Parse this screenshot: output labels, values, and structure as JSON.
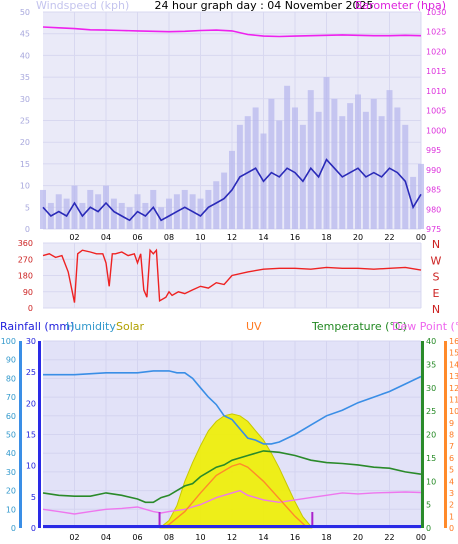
{
  "chart_data": [
    {
      "type": "line",
      "title": "24 hour graph day : 04 November 2025",
      "left_label": "Windspeed (kph)",
      "right_label": "Barometer (hpa)",
      "x_ticks": [
        "02",
        "04",
        "06",
        "08",
        "10",
        "12",
        "14",
        "16",
        "18",
        "20",
        "22",
        "00"
      ],
      "y_left_ticks": [
        "0",
        "5",
        "10",
        "15",
        "20",
        "25",
        "30",
        "35",
        "40",
        "45",
        "50"
      ],
      "y_right_ticks": [
        "975",
        "980",
        "985",
        "990",
        "995",
        "1000",
        "1005",
        "1010",
        "1015",
        "1020",
        "1025",
        "1030"
      ],
      "ylim_left": [
        0,
        50
      ],
      "ylim_right": [
        975,
        1030
      ],
      "colors": {
        "wind_avg": "#2a2ab8",
        "wind_gust": "#b8b8ee",
        "barometer": "#ee22ee"
      },
      "series": [
        {
          "key": "barometer",
          "axis": "right",
          "x": [
            0,
            1,
            2,
            3,
            4,
            5,
            6,
            7,
            8,
            9,
            10,
            11,
            12,
            13,
            14,
            15,
            16,
            17,
            18,
            19,
            20,
            21,
            22,
            23,
            24
          ],
          "values": [
            1026.2,
            1026.0,
            1025.8,
            1025.5,
            1025.4,
            1025.3,
            1025.2,
            1025.1,
            1025.0,
            1025.1,
            1025.3,
            1025.4,
            1025.2,
            1024.3,
            1023.9,
            1023.8,
            1023.9,
            1024.0,
            1024.1,
            1024.2,
            1024.1,
            1024.0,
            1024.0,
            1024.1,
            1024.0
          ]
        },
        {
          "key": "wind_avg",
          "axis": "left",
          "x": [
            0,
            0.5,
            1,
            1.5,
            2,
            2.5,
            3,
            3.5,
            4,
            4.5,
            5,
            5.5,
            6,
            6.5,
            7,
            7.5,
            8,
            8.5,
            9,
            9.5,
            10,
            10.5,
            11,
            11.5,
            12,
            12.5,
            13,
            13.5,
            14,
            14.5,
            15,
            15.5,
            16,
            16.5,
            17,
            17.5,
            18,
            18.5,
            19,
            19.5,
            20,
            20.5,
            21,
            21.5,
            22,
            22.5,
            23,
            23.5,
            24
          ],
          "values": [
            5,
            3,
            4,
            3,
            6,
            3,
            5,
            4,
            6,
            4,
            3,
            2,
            4,
            3,
            5,
            2,
            3,
            4,
            5,
            4,
            3,
            5,
            6,
            7,
            9,
            12,
            13,
            14,
            11,
            13,
            12,
            14,
            13,
            11,
            14,
            12,
            16,
            14,
            12,
            13,
            14,
            12,
            13,
            12,
            14,
            13,
            11,
            5,
            8
          ]
        },
        {
          "key": "wind_gust",
          "axis": "left",
          "x": [
            0,
            0.5,
            1,
            1.5,
            2,
            2.5,
            3,
            3.5,
            4,
            4.5,
            5,
            5.5,
            6,
            6.5,
            7,
            7.5,
            8,
            8.5,
            9,
            9.5,
            10,
            10.5,
            11,
            11.5,
            12,
            12.5,
            13,
            13.5,
            14,
            14.5,
            15,
            15.5,
            16,
            16.5,
            17,
            17.5,
            18,
            18.5,
            19,
            19.5,
            20,
            20.5,
            21,
            21.5,
            22,
            22.5,
            23,
            23.5,
            24
          ],
          "values": [
            9,
            6,
            8,
            7,
            10,
            6,
            9,
            8,
            10,
            7,
            6,
            5,
            8,
            6,
            9,
            5,
            7,
            8,
            9,
            8,
            7,
            9,
            11,
            13,
            18,
            24,
            26,
            28,
            22,
            30,
            25,
            33,
            28,
            24,
            32,
            27,
            35,
            30,
            26,
            29,
            31,
            27,
            30,
            26,
            32,
            28,
            24,
            12,
            15
          ]
        }
      ]
    },
    {
      "type": "line",
      "y_ticks": [
        "360",
        "270",
        "180",
        "90",
        "0"
      ],
      "ylim": [
        0,
        360
      ],
      "right_ticks": [
        "N",
        "W",
        "S",
        "E",
        "N"
      ],
      "colors": {
        "direction": "#ee2222"
      },
      "series": [
        {
          "key": "wind_direction",
          "x": [
            0,
            0.4,
            0.8,
            1.2,
            1.6,
            2.0,
            2.2,
            2.5,
            3.0,
            3.4,
            3.8,
            4.0,
            4.2,
            4.4,
            4.6,
            5.0,
            5.4,
            5.8,
            6.0,
            6.2,
            6.4,
            6.6,
            6.8,
            7.0,
            7.2,
            7.4,
            7.8,
            8.0,
            8.2,
            8.6,
            9.0,
            9.5,
            10,
            10.5,
            11,
            11.5,
            12,
            13,
            14,
            15,
            16,
            17,
            18,
            19,
            20,
            21,
            22,
            23,
            24
          ],
          "values": [
            290,
            300,
            280,
            290,
            200,
            30,
            300,
            320,
            310,
            300,
            300,
            250,
            120,
            300,
            300,
            310,
            290,
            300,
            250,
            300,
            100,
            60,
            320,
            300,
            320,
            40,
            60,
            90,
            70,
            90,
            80,
            100,
            120,
            110,
            140,
            130,
            180,
            200,
            215,
            220,
            220,
            215,
            225,
            220,
            220,
            215,
            220,
            225,
            210
          ]
        }
      ]
    },
    {
      "type": "line",
      "labels": {
        "rainfall": "Rainfall (mm)",
        "humidity": "Humidity",
        "solar": "Solar",
        "uv": "UV",
        "temperature": "Temperature (°C)",
        "dewpoint": "Dew Point (°C)"
      },
      "x_ticks": [
        "02",
        "04",
        "06",
        "08",
        "10",
        "12",
        "14",
        "16",
        "18",
        "20",
        "22",
        "00"
      ],
      "y_humidity_ticks": [
        "0",
        "10",
        "20",
        "30",
        "40",
        "50",
        "60",
        "70",
        "80",
        "90",
        "100"
      ],
      "y_rain_ticks": [
        "0",
        "5",
        "10",
        "15",
        "20",
        "25",
        "30"
      ],
      "y_temp_ticks": [
        "0",
        "5",
        "10",
        "15",
        "20",
        "25",
        "30",
        "35",
        "40"
      ],
      "y_uv_ticks": [
        "0",
        "1",
        "2",
        "3",
        "4",
        "5",
        "6",
        "7",
        "8",
        "9",
        "10",
        "11",
        "12",
        "13",
        "14",
        "15",
        "16"
      ],
      "ylim_humidity": [
        0,
        100
      ],
      "ylim_temp": [
        0,
        40
      ],
      "ylim_uv": [
        0,
        16
      ],
      "colors": {
        "humidity": "#3a8ee6",
        "temperature": "#2a8a2a",
        "dewpoint": "#ee77ee",
        "solar": "#f0f000",
        "uv": "#ff8a2a",
        "rainfall": "#5555ff"
      },
      "sun_markers": [
        7.4,
        17.1
      ],
      "series": [
        {
          "key": "humidity",
          "axis": "humidity",
          "x": [
            0,
            2,
            4,
            6,
            7,
            8,
            8.5,
            9,
            9.5,
            10,
            10.5,
            11,
            11.5,
            12,
            12.5,
            13,
            13.5,
            14,
            14.5,
            15,
            16,
            17,
            18,
            19,
            20,
            21,
            22,
            23,
            24
          ],
          "values": [
            82,
            82,
            83,
            83,
            84,
            84,
            83,
            83,
            80,
            75,
            70,
            66,
            60,
            58,
            53,
            48,
            47,
            45,
            45,
            46,
            50,
            55,
            60,
            63,
            67,
            70,
            73,
            77,
            81
          ]
        },
        {
          "key": "temperature",
          "axis": "temp",
          "x": [
            0,
            1,
            2,
            3,
            4,
            5,
            6,
            6.5,
            7,
            7.5,
            8,
            8.5,
            9,
            9.5,
            10,
            10.5,
            11,
            11.5,
            12,
            13,
            14,
            15,
            16,
            17,
            18,
            19,
            20,
            21,
            22,
            23,
            24
          ],
          "values": [
            7.5,
            7,
            6.8,
            6.8,
            7.5,
            7,
            6.2,
            5.5,
            5.5,
            6.5,
            7,
            8,
            9,
            9.5,
            11,
            12,
            13,
            13.5,
            14.5,
            15.5,
            16.5,
            16.2,
            15.5,
            14.5,
            14,
            13.8,
            13.5,
            13,
            12.8,
            12,
            11.5
          ]
        },
        {
          "key": "dewpoint",
          "axis": "temp",
          "x": [
            0,
            1,
            2,
            3,
            4,
            5,
            6,
            7,
            7.5,
            8,
            9,
            10,
            11,
            12,
            12.5,
            13,
            14,
            15,
            16,
            17,
            18,
            19,
            20,
            21,
            22,
            23,
            24
          ],
          "values": [
            4,
            3.5,
            3,
            3.5,
            4,
            4.2,
            4.5,
            3.5,
            3.2,
            3.5,
            4,
            5,
            6.5,
            7.5,
            8,
            7,
            6,
            5.5,
            6,
            6.5,
            7,
            7.5,
            7.3,
            7.5,
            7.6,
            7.7,
            7.6
          ]
        },
        {
          "key": "solar",
          "axis": "humidity",
          "x": [
            7.4,
            8,
            8.5,
            9,
            9.5,
            10,
            10.5,
            11,
            11.5,
            12,
            12.5,
            13,
            13.5,
            14,
            14.5,
            15,
            15.5,
            16,
            16.5,
            17.1
          ],
          "values": [
            0,
            4,
            12,
            25,
            35,
            44,
            52,
            57,
            60,
            61,
            60,
            57,
            52,
            47,
            40,
            32,
            23,
            14,
            6,
            0
          ]
        },
        {
          "key": "uv",
          "axis": "uv",
          "x": [
            7.6,
            8,
            9,
            10,
            11,
            12,
            12.5,
            13,
            14,
            15,
            16,
            16.8
          ],
          "values": [
            0,
            0.3,
            1.4,
            3,
            4.5,
            5.3,
            5.5,
            5.2,
            4,
            2.5,
            1,
            0
          ]
        }
      ]
    }
  ]
}
